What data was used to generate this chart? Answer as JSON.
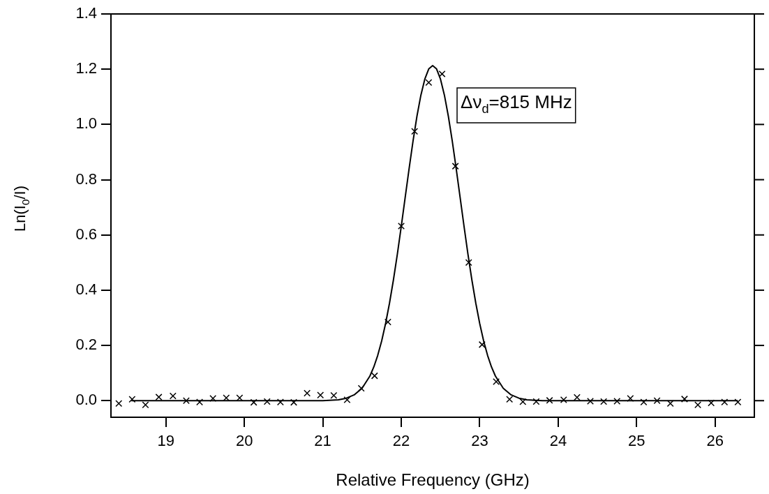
{
  "chart_data": {
    "type": "scatter",
    "xlabel": "Relative Frequency (GHz)",
    "ylabel": "Ln(I$_{0}$/I)",
    "annotations": [
      "Δν$_{d}$=815 MHz"
    ],
    "xlim": [
      18.3,
      26.5
    ],
    "xticks": [
      19,
      20,
      21,
      22,
      23,
      24,
      25,
      26
    ],
    "ylim": [
      -0.06,
      1.4
    ],
    "yticks": [
      {
        "value": 0,
        "label": "0.0"
      },
      0.2,
      0.4,
      0.6,
      0.8,
      {
        "value": 1,
        "label": "1.0"
      },
      1.2,
      1.4
    ],
    "grid": false,
    "legend": false,
    "marker": "cross",
    "series": [
      {
        "color": "#000000",
        "x": [
          18.4,
          18.57,
          18.74,
          18.91,
          19.09,
          19.26,
          19.43,
          19.6,
          19.77,
          19.94,
          20.12,
          20.29,
          20.46,
          20.63,
          20.8,
          20.97,
          21.14,
          21.31,
          21.49,
          21.66,
          21.83,
          22.0,
          22.17,
          22.35,
          22.52,
          22.69,
          22.86,
          23.03,
          23.21,
          23.38,
          23.55,
          23.72,
          23.89,
          24.07,
          24.24,
          24.41,
          24.58,
          24.75,
          24.92,
          25.09,
          25.26,
          25.43,
          25.61,
          25.78,
          25.95,
          26.12,
          26.29
        ],
        "values": [
          -0.01,
          0.005,
          -0.015,
          0.013,
          0.017,
          0.0,
          -0.005,
          0.008,
          0.01,
          0.01,
          -0.006,
          -0.003,
          -0.005,
          -0.006,
          0.027,
          0.02,
          0.019,
          0.003,
          0.045,
          0.09,
          0.285,
          0.632,
          0.975,
          1.152,
          1.183,
          0.849,
          0.5,
          0.203,
          0.069,
          0.005,
          -0.004,
          -0.003,
          0.001,
          0.003,
          0.012,
          -0.002,
          -0.003,
          -0.002,
          0.008,
          -0.005,
          0.0,
          -0.01,
          0.006,
          -0.015,
          -0.008,
          -0.005,
          -0.005
        ]
      },
      {
        "type": "line",
        "color": "#000000",
        "marker": "none",
        "line_style": "solid",
        "x": [
          18.56,
          21.0,
          21.2,
          21.3,
          21.4,
          21.5,
          21.6,
          21.65,
          21.7,
          21.75,
          21.8,
          21.85,
          21.9,
          21.95,
          22.0,
          22.05,
          22.1,
          22.15,
          22.2,
          22.25,
          22.3,
          22.35,
          22.4,
          22.45,
          22.5,
          22.55,
          22.6,
          22.65,
          22.7,
          22.75,
          22.8,
          22.85,
          22.9,
          22.95,
          23.0,
          23.05,
          23.1,
          23.15,
          23.2,
          23.3,
          23.4,
          23.5,
          23.6,
          23.8,
          26.29
        ],
        "values": [
          0,
          0,
          0.003,
          0.009,
          0.021,
          0.045,
          0.089,
          0.122,
          0.164,
          0.216,
          0.279,
          0.353,
          0.437,
          0.53,
          0.631,
          0.736,
          0.84,
          0.94,
          1.03,
          1.106,
          1.164,
          1.201,
          1.213,
          1.201,
          1.164,
          1.106,
          1.03,
          0.94,
          0.84,
          0.736,
          0.631,
          0.53,
          0.437,
          0.353,
          0.279,
          0.216,
          0.164,
          0.122,
          0.089,
          0.045,
          0.021,
          0.009,
          0.003,
          0,
          0
        ]
      }
    ]
  }
}
